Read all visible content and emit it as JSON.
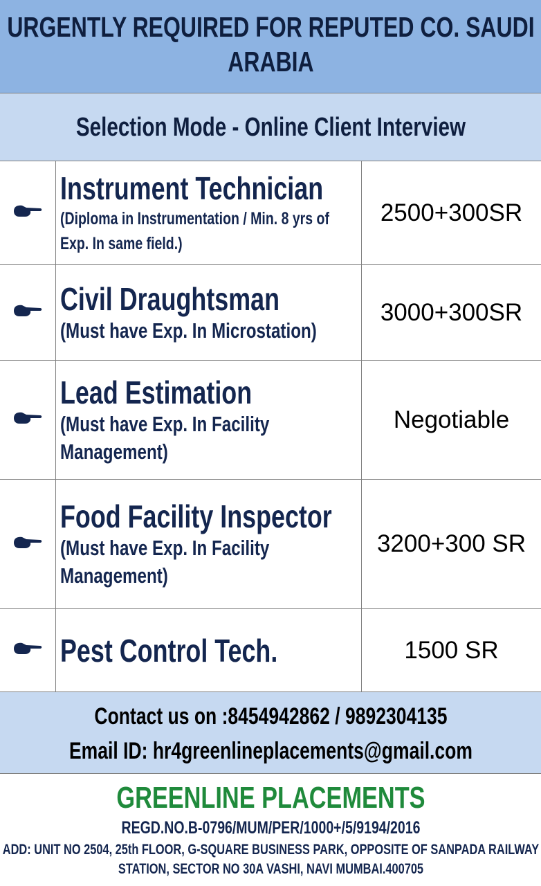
{
  "header": {
    "title": "URGENTLY REQUIRED FOR REPUTED CO. SAUDI ARABIA",
    "selection_mode": "Selection Mode - Online Client Interview"
  },
  "jobs": [
    {
      "icon": "pointing-hand-icon",
      "title": "Instrument Technician",
      "description": "(Diploma in Instrumentation / Min. 8 yrs of Exp. In same field.)",
      "salary": "2500+300SR"
    },
    {
      "icon": "pointing-hand-icon",
      "title": "Civil Draughtsman",
      "description": "(Must have Exp. In Microstation)",
      "salary": "3000+300SR"
    },
    {
      "icon": "pointing-hand-icon",
      "title": "Lead Estimation",
      "description": "(Must have Exp. In Facility Management)",
      "salary": "Negotiable"
    },
    {
      "icon": "pointing-hand-icon",
      "title": "Food Facility Inspector",
      "description": "(Must have Exp. In Facility Management)",
      "salary": "3200+300 SR"
    },
    {
      "icon": "pointing-hand-icon",
      "title": "Pest Control Tech.",
      "description": "",
      "salary": "1500 SR"
    }
  ],
  "contact": {
    "phone": "Contact us on :8454942862 / 9892304135",
    "email": "Email ID: hr4greenlineplacements@gmail.com"
  },
  "footer": {
    "company": "GREENLINE PLACEMENTS",
    "registration": "REGD.NO.B-0796/MUM/PER/1000+/5/9194/2016",
    "address": "ADD: UNIT NO 2504,  25th FLOOR, G-SQUARE BUSINESS PARK, OPPOSITE OF SANPADA RAILWAY STATION, SECTOR NO 30A VASHI, NAVI MUMBAI.400705"
  },
  "colors": {
    "header_bg": "#8db3e2",
    "band_bg": "#c6d9f1",
    "text_navy": "#14264f",
    "brand_green": "#1f8a3b"
  }
}
